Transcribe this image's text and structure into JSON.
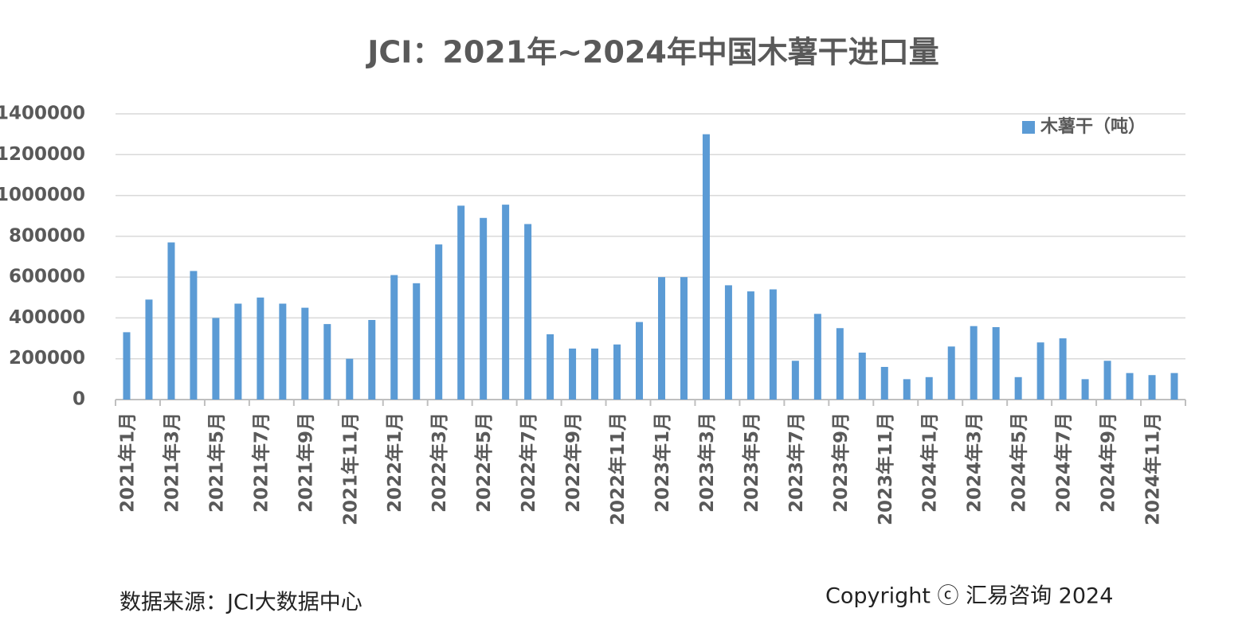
{
  "chart_data": {
    "type": "bar",
    "title": "JCI：2021年~2024年中国木薯干进口量",
    "categories": [
      "2021年1月",
      null,
      "2021年3月",
      null,
      "2021年5月",
      null,
      "2021年7月",
      null,
      "2021年9月",
      null,
      "2021年11月",
      null,
      "2022年1月",
      null,
      "2022年3月",
      null,
      "2022年5月",
      null,
      "2022年7月",
      null,
      "2022年9月",
      null,
      "2022年11月",
      null,
      "2023年1月",
      null,
      "2023年3月",
      null,
      "2023年5月",
      null,
      "2023年7月",
      null,
      "2023年9月",
      null,
      "2023年11月",
      null,
      "2024年1月",
      null,
      "2024年3月",
      null,
      "2024年5月",
      null,
      "2024年7月",
      null,
      "2024年9月",
      null,
      "2024年11月",
      null
    ],
    "series": [
      {
        "name": "木薯干（吨）",
        "color": "#5b9bd5",
        "values": [
          330000,
          490000,
          770000,
          630000,
          400000,
          470000,
          500000,
          470000,
          450000,
          370000,
          200000,
          390000,
          610000,
          570000,
          760000,
          950000,
          890000,
          955000,
          860000,
          320000,
          250000,
          250000,
          270000,
          380000,
          600000,
          600000,
          1300000,
          560000,
          530000,
          540000,
          190000,
          420000,
          350000,
          230000,
          160000,
          100000,
          110000,
          260000,
          360000,
          355000,
          110000,
          280000,
          300000,
          100000,
          190000,
          130000,
          120000,
          130000
        ]
      }
    ],
    "ylim": [
      0,
      1400000
    ],
    "yticks": [
      0,
      200000,
      400000,
      600000,
      800000,
      1000000,
      1200000,
      1400000
    ],
    "grid": true,
    "legend": "top-right",
    "source": "数据来源：JCI大数据中心",
    "copyright": "Copyright ⓒ 汇易咨询 2024"
  }
}
